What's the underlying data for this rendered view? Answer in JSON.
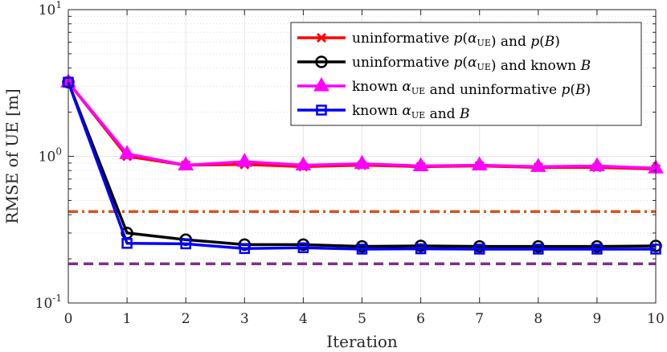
{
  "chart_data": {
    "type": "line",
    "xlabel": "Iteration",
    "ylabel": "RMSE of UE [m]",
    "xlim": [
      0,
      10
    ],
    "ylim": [
      0.1,
      10
    ],
    "yscale": "log",
    "grid": true,
    "x": [
      0,
      1,
      2,
      3,
      4,
      5,
      6,
      7,
      8,
      9,
      10
    ],
    "x_tick_labels": [
      "0",
      "1",
      "2",
      "3",
      "4",
      "5",
      "6",
      "7",
      "8",
      "9",
      "10"
    ],
    "y_tick_labels": [
      {
        "value": 10,
        "base": "10",
        "exp": "1"
      },
      {
        "value": 1,
        "base": "10",
        "exp": "0"
      },
      {
        "value": 0.1,
        "base": "10",
        "exp": "-1"
      }
    ],
    "legend_position": "top-right",
    "series": [
      {
        "name": "uninformative p(α_UE) and p(B)",
        "legend_parts": [
          "uninformative ",
          "p",
          "(",
          "α",
          "UE",
          ") and ",
          "p",
          "(",
          "B",
          ")"
        ],
        "color": "#ff0000",
        "marker": "x",
        "values": [
          3.2,
          1.0,
          0.87,
          0.88,
          0.85,
          0.87,
          0.85,
          0.86,
          0.84,
          0.84,
          0.82
        ]
      },
      {
        "name": "uninformative p(α_UE) and known B",
        "legend_parts": [
          "uninformative ",
          "p",
          "(",
          "α",
          "UE",
          ") and known ",
          "B"
        ],
        "color": "#000000",
        "marker": "circle",
        "values": [
          3.2,
          0.3,
          0.27,
          0.25,
          0.25,
          0.243,
          0.245,
          0.243,
          0.243,
          0.243,
          0.245
        ]
      },
      {
        "name": "known α_UE and uninformative p(B)",
        "legend_parts": [
          "known ",
          "α",
          "UE",
          " and uninformative ",
          "p",
          "(",
          "B",
          ")"
        ],
        "color": "#ff00ff",
        "marker": "triangle",
        "values": [
          3.2,
          1.04,
          0.87,
          0.92,
          0.87,
          0.89,
          0.86,
          0.87,
          0.85,
          0.86,
          0.83
        ]
      },
      {
        "name": "known α_UE and B",
        "legend_parts": [
          "known ",
          "α",
          "UE",
          " and ",
          "B"
        ],
        "color": "#0000ff",
        "marker": "square",
        "values": [
          3.2,
          0.255,
          0.253,
          0.235,
          0.238,
          0.233,
          0.234,
          0.233,
          0.233,
          0.233,
          0.233
        ]
      }
    ],
    "reference_lines": [
      {
        "name": "reference-bound-1",
        "value": 0.42,
        "color": "#d95319",
        "style": "dash-dot"
      },
      {
        "name": "reference-bound-2",
        "value": 0.185,
        "color": "#7e2f8e",
        "style": "dashed"
      }
    ]
  }
}
